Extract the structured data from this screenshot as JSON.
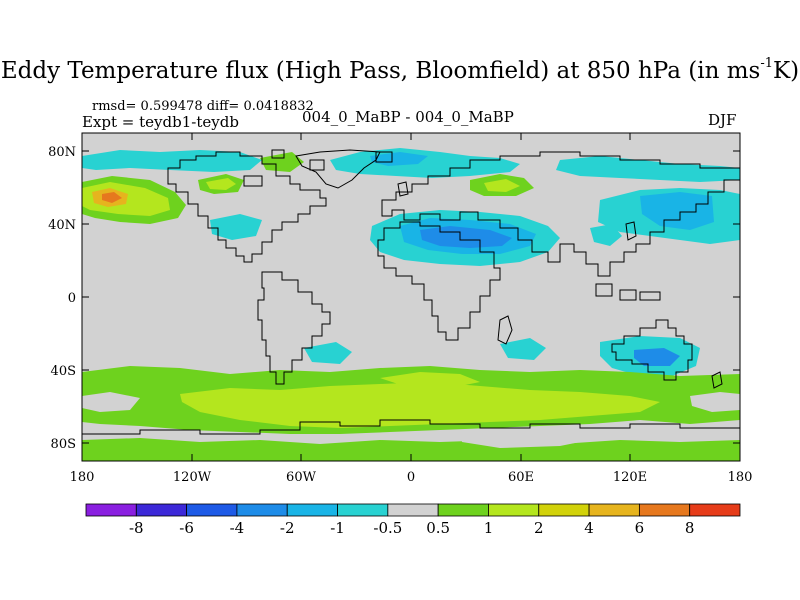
{
  "title": {
    "main": "Eddy Temperature flux (High Pass, Bloomfield) at 850 hPa (in ms",
    "sup": "-1",
    "tail": "K)"
  },
  "stats": "rmsd= 0.599478 diff= 0.0418832",
  "expt": "Expt = teydb1-teydb",
  "subtitle": "004_0_MaBP - 004_0_MaBP",
  "season": "DJF",
  "lat_labels": [
    "80N",
    "40N",
    "0",
    "40S",
    "80S"
  ],
  "lon_labels": [
    "180",
    "120W",
    "60W",
    "0",
    "60E",
    "120E",
    "180"
  ],
  "colorbar": {
    "labels": [
      "-8",
      "-6",
      "-4",
      "-2",
      "-1",
      "-0.5",
      "0.5",
      "1",
      "2",
      "4",
      "6",
      "8"
    ],
    "colors": [
      "#8a1fe0",
      "#3c28d8",
      "#1e5ae6",
      "#1e8ce8",
      "#19b4e6",
      "#28d2d2",
      "#d2d2d2",
      "#6ed21e",
      "#b4e61e",
      "#d2d20a",
      "#e6b41e",
      "#e6781e",
      "#e63c19"
    ]
  },
  "colors": {
    "land_outline": "#000000",
    "background_field": "#d2d2d2"
  }
}
